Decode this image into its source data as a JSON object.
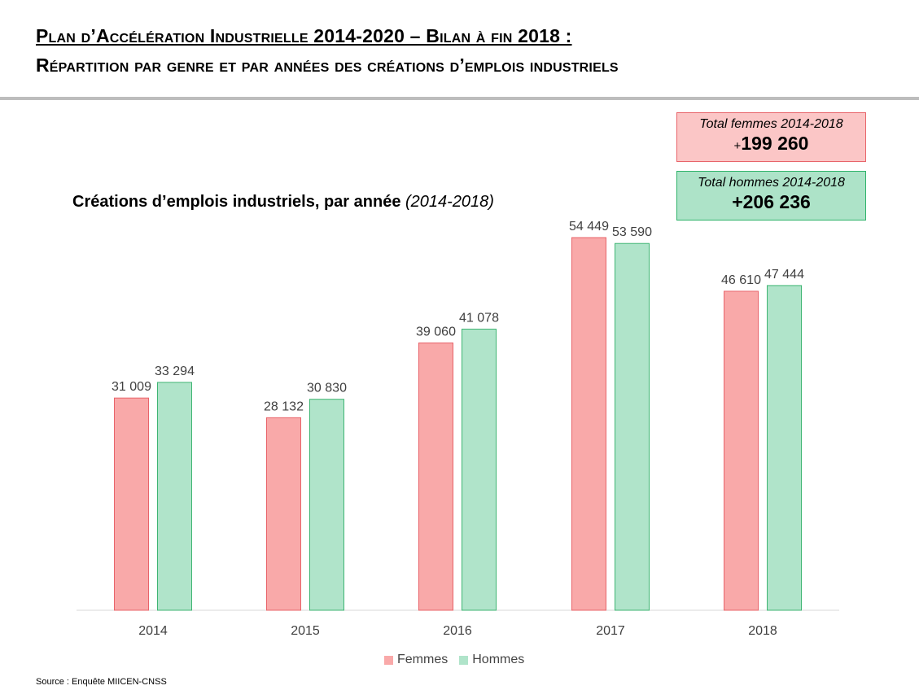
{
  "header": {
    "line1": "Plan d’Accélération Industrielle 2014-2020 – Bilan à fin 2018 :",
    "line2": "Répartition par genre et par années des créations d’emplois industriels"
  },
  "totals": {
    "femmes": {
      "label": "Total femmes 2014-2018",
      "plus": "+",
      "value": "199 260",
      "bg": "#fbc6c6",
      "border": "#e8646a"
    },
    "hommes": {
      "label": "Total hommes 2014-2018",
      "value": "+206 236",
      "bg": "#ade3c8",
      "border": "#2fb36a"
    }
  },
  "source": "Source : Enquête MIICEN-CNSS",
  "chart_data": {
    "type": "bar",
    "title": "Créations d’emplois industriels, par année",
    "subtitle": "(2014-2018)",
    "categories": [
      "2014",
      "2015",
      "2016",
      "2017",
      "2018"
    ],
    "series": [
      {
        "name": "Femmes",
        "values": [
          31009,
          28132,
          39060,
          54449,
          46610
        ],
        "labels": [
          "31 009",
          "28 132",
          "39 060",
          "54 449",
          "46 610"
        ],
        "color": "#f9a9a9",
        "stroke": "#e8646a"
      },
      {
        "name": "Hommes",
        "values": [
          33294,
          30830,
          41078,
          53590,
          47444
        ],
        "labels": [
          "33 294",
          "30 830",
          "41 078",
          "53 590",
          "47 444"
        ],
        "color": "#b0e4ca",
        "stroke": "#3fb573"
      }
    ],
    "ylim": [
      0,
      60000
    ],
    "grid": false,
    "legend": "bottom"
  }
}
